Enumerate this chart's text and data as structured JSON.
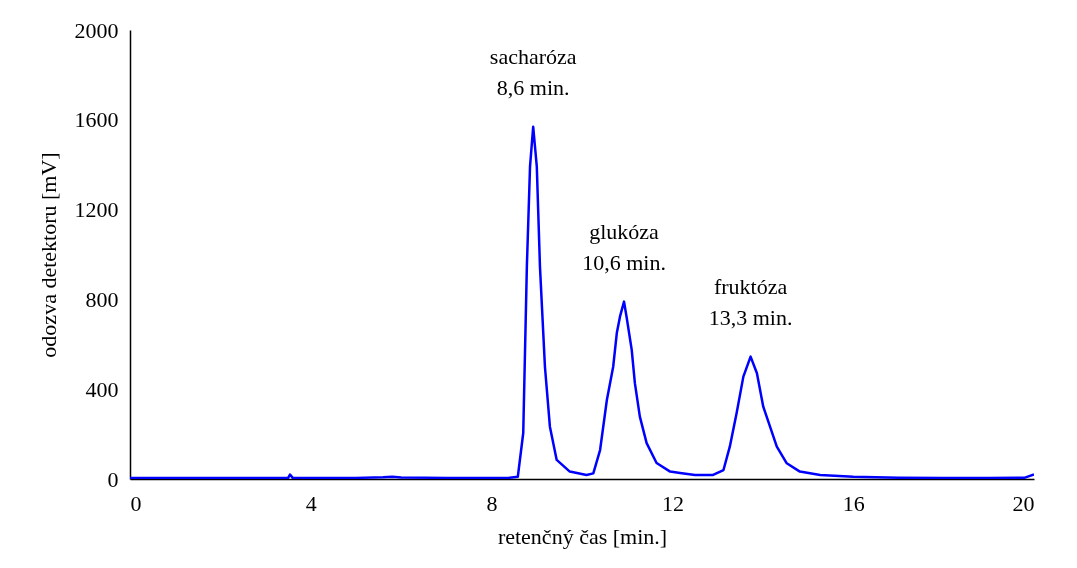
{
  "chart_data": {
    "type": "line",
    "xlabel": "retenčný čas [min.]",
    "ylabel": "odozva detektoru [mV]",
    "xlim": [
      0,
      20
    ],
    "xticks": [
      0,
      4,
      8,
      12,
      16,
      20
    ],
    "ylim": [
      0,
      2000
    ],
    "yticks": [
      0,
      400,
      800,
      1200,
      1600,
      2000
    ],
    "grid": false,
    "marker": "none",
    "line_style": "solid",
    "x": [
      0,
      1,
      2,
      3,
      3.5,
      3.54,
      3.6,
      4,
      5,
      5.6,
      5.8,
      6,
      7,
      8,
      8.4,
      8.58,
      8.7,
      8.78,
      8.85,
      8.92,
      9,
      9.07,
      9.18,
      9.29,
      9.44,
      9.73,
      10.1,
      10.25,
      10.4,
      10.55,
      10.69,
      10.77,
      10.84,
      10.93,
      10.99,
      11.1,
      11.17,
      11.28,
      11.43,
      11.65,
      11.95,
      12.17,
      12.5,
      12.9,
      13.13,
      13.27,
      13.42,
      13.57,
      13.73,
      13.87,
      14.01,
      14.16,
      14.31,
      14.53,
      14.82,
      15.27,
      16,
      17,
      18,
      19,
      19.8,
      20
    ],
    "series": [
      {
        "color": "#0000ff",
        "values": [
          5,
          5,
          5,
          5,
          5,
          20,
          5,
          5,
          5,
          8,
          10,
          7,
          5,
          5,
          6,
          10,
          205,
          946,
          1391,
          1569,
          1391,
          946,
          500,
          233,
          85,
          33,
          18,
          25,
          129,
          352,
          500,
          650,
          723,
          790,
          717,
          575,
          427,
          278,
          160,
          71,
          33,
          27,
          18,
          18,
          40,
          144,
          293,
          456,
          545,
          471,
          322,
          233,
          144,
          70,
          33,
          18,
          10,
          6,
          5,
          5,
          6,
          20
        ]
      }
    ],
    "annotations": [
      {
        "text": "sacharóza\n8,6 min.",
        "x": 8.92,
        "y": 1569
      },
      {
        "text": "glukóza\n10,6 min.",
        "x": 10.93,
        "y": 790
      },
      {
        "text": "fruktóza\n13,3 min.",
        "x": 13.73,
        "y": 545
      }
    ]
  }
}
